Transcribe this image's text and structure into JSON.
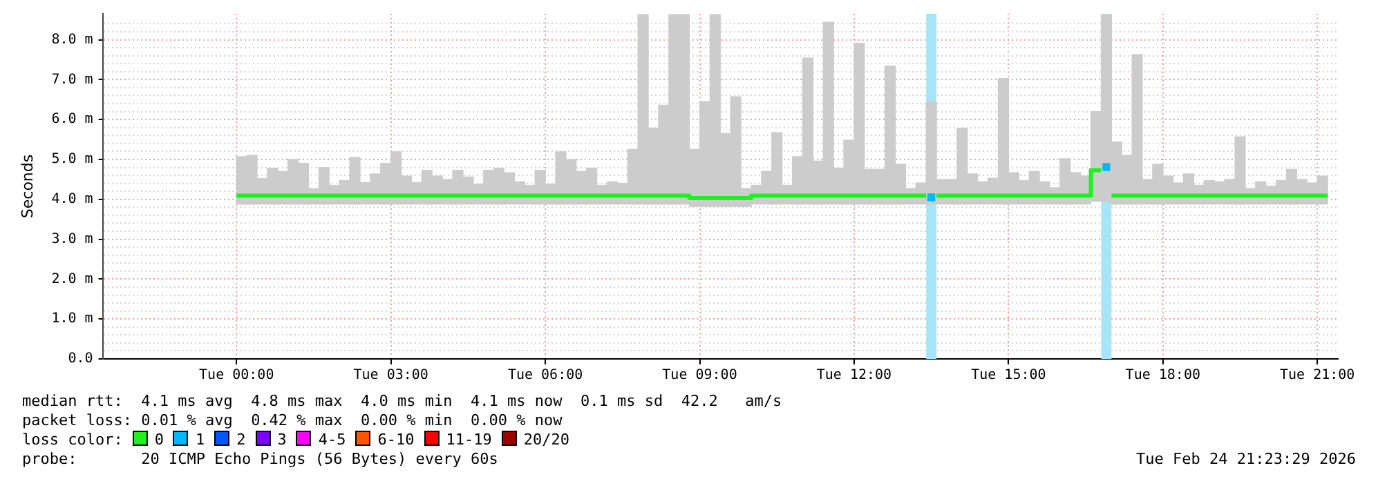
{
  "chart_data": {
    "type": "step",
    "ylabel": "Seconds",
    "legend_title": "loss color:",
    "legend": "bottom",
    "grid": true,
    "xlim": [
      "2026-02-23T21:24",
      "2026-02-24T21:24"
    ],
    "ylim": [
      0,
      8.65
    ],
    "xticks": [
      {
        "value": "2026-02-24T00:00",
        "label": "Tue 00:00"
      },
      {
        "value": "2026-02-24T03:00",
        "label": "Tue 03:00"
      },
      {
        "value": "2026-02-24T06:00",
        "label": "Tue 06:00"
      },
      {
        "value": "2026-02-24T09:00",
        "label": "Tue 09:00"
      },
      {
        "value": "2026-02-24T12:00",
        "label": "Tue 12:00"
      },
      {
        "value": "2026-02-24T15:00",
        "label": "Tue 15:00"
      },
      {
        "value": "2026-02-24T18:00",
        "label": "Tue 18:00"
      },
      {
        "value": "2026-02-24T21:00",
        "label": "Tue 21:00"
      }
    ],
    "yticks": [
      {
        "value": 0,
        "label": "0.0"
      },
      {
        "value": 0.2,
        "label": null
      },
      {
        "value": 0.4,
        "label": null
      },
      {
        "value": 0.6,
        "label": null
      },
      {
        "value": 0.8,
        "label": null
      },
      {
        "value": 1,
        "label": "1.0 m"
      },
      {
        "value": 1.2,
        "label": null
      },
      {
        "value": 1.4,
        "label": null
      },
      {
        "value": 1.6,
        "label": null
      },
      {
        "value": 1.8,
        "label": null
      },
      {
        "value": 2,
        "label": "2.0 m"
      },
      {
        "value": 2.2,
        "label": null
      },
      {
        "value": 2.4,
        "label": null
      },
      {
        "value": 2.6,
        "label": null
      },
      {
        "value": 2.8,
        "label": null
      },
      {
        "value": 3,
        "label": "3.0 m"
      },
      {
        "value": 3.2,
        "label": null
      },
      {
        "value": 3.4,
        "label": null
      },
      {
        "value": 3.6,
        "label": null
      },
      {
        "value": 3.8,
        "label": null
      },
      {
        "value": 4,
        "label": "4.0 m"
      },
      {
        "value": 4.2,
        "label": null
      },
      {
        "value": 4.4,
        "label": null
      },
      {
        "value": 4.6,
        "label": null
      },
      {
        "value": 4.8,
        "label": null
      },
      {
        "value": 5,
        "label": "5.0 m"
      },
      {
        "value": 5.2,
        "label": null
      },
      {
        "value": 5.4,
        "label": null
      },
      {
        "value": 5.6,
        "label": null
      },
      {
        "value": 5.8,
        "label": null
      },
      {
        "value": 6,
        "label": "6.0 m"
      },
      {
        "value": 6.2,
        "label": null
      },
      {
        "value": 6.4,
        "label": null
      },
      {
        "value": 6.6,
        "label": null
      },
      {
        "value": 6.8,
        "label": null
      },
      {
        "value": 7,
        "label": "7.0 m"
      },
      {
        "value": 7.2,
        "label": null
      },
      {
        "value": 7.4,
        "label": null
      },
      {
        "value": 7.6,
        "label": null
      },
      {
        "value": 7.8,
        "label": null
      },
      {
        "value": 8,
        "label": "8.0 m"
      },
      {
        "value": 8.2,
        "label": null
      },
      {
        "value": 8.4,
        "label": null
      }
    ],
    "x": [
      "2026-02-24T00:06",
      "2026-02-24T00:18",
      "2026-02-24T00:30",
      "2026-02-24T00:42",
      "2026-02-24T00:54",
      "2026-02-24T01:06",
      "2026-02-24T01:18",
      "2026-02-24T01:30",
      "2026-02-24T01:42",
      "2026-02-24T01:54",
      "2026-02-24T02:06",
      "2026-02-24T02:18",
      "2026-02-24T02:30",
      "2026-02-24T02:42",
      "2026-02-24T02:54",
      "2026-02-24T03:06",
      "2026-02-24T03:18",
      "2026-02-24T03:30",
      "2026-02-24T03:42",
      "2026-02-24T03:54",
      "2026-02-24T04:06",
      "2026-02-24T04:18",
      "2026-02-24T04:30",
      "2026-02-24T04:42",
      "2026-02-24T04:54",
      "2026-02-24T05:06",
      "2026-02-24T05:18",
      "2026-02-24T05:30",
      "2026-02-24T05:42",
      "2026-02-24T05:54",
      "2026-02-24T06:06",
      "2026-02-24T06:18",
      "2026-02-24T06:30",
      "2026-02-24T06:42",
      "2026-02-24T06:54",
      "2026-02-24T07:06",
      "2026-02-24T07:18",
      "2026-02-24T07:30",
      "2026-02-24T07:42",
      "2026-02-24T07:54",
      "2026-02-24T08:06",
      "2026-02-24T08:18",
      "2026-02-24T08:30",
      "2026-02-24T08:42",
      "2026-02-24T08:54",
      "2026-02-24T09:06",
      "2026-02-24T09:18",
      "2026-02-24T09:30",
      "2026-02-24T09:42",
      "2026-02-24T09:54",
      "2026-02-24T10:06",
      "2026-02-24T10:18",
      "2026-02-24T10:30",
      "2026-02-24T10:42",
      "2026-02-24T10:54",
      "2026-02-24T11:06",
      "2026-02-24T11:18",
      "2026-02-24T11:30",
      "2026-02-24T11:42",
      "2026-02-24T11:54",
      "2026-02-24T12:06",
      "2026-02-24T12:18",
      "2026-02-24T12:30",
      "2026-02-24T12:42",
      "2026-02-24T12:54",
      "2026-02-24T13:06",
      "2026-02-24T13:18",
      "2026-02-24T13:30",
      "2026-02-24T13:42",
      "2026-02-24T13:54",
      "2026-02-24T14:06",
      "2026-02-24T14:18",
      "2026-02-24T14:30",
      "2026-02-24T14:42",
      "2026-02-24T14:54",
      "2026-02-24T15:06",
      "2026-02-24T15:18",
      "2026-02-24T15:30",
      "2026-02-24T15:42",
      "2026-02-24T15:54",
      "2026-02-24T16:06",
      "2026-02-24T16:18",
      "2026-02-24T16:30",
      "2026-02-24T16:42",
      "2026-02-24T16:54",
      "2026-02-24T17:06",
      "2026-02-24T17:18",
      "2026-02-24T17:30",
      "2026-02-24T17:42",
      "2026-02-24T17:54",
      "2026-02-24T18:06",
      "2026-02-24T18:18",
      "2026-02-24T18:30",
      "2026-02-24T18:42",
      "2026-02-24T18:54",
      "2026-02-24T19:06",
      "2026-02-24T19:18",
      "2026-02-24T19:30",
      "2026-02-24T19:42",
      "2026-02-24T19:54",
      "2026-02-24T20:06",
      "2026-02-24T20:18",
      "2026-02-24T20:30",
      "2026-02-24T20:42",
      "2026-02-24T20:54",
      "2026-02-24T21:06"
    ],
    "bands": [
      {
        "axis": "x",
        "from": "2026-02-24T13:24",
        "to": "2026-02-24T13:36",
        "color": "#a8e4f8"
      },
      {
        "axis": "x",
        "from": "2026-02-24T16:48",
        "to": "2026-02-24T17:00",
        "color": "#a8e4f8"
      }
    ],
    "series": [
      {
        "type": "bar",
        "color": "#cccccc",
        "base": [
          3.88,
          3.88,
          3.88,
          3.88,
          3.88,
          3.88,
          3.88,
          3.88,
          3.88,
          3.88,
          3.88,
          3.88,
          3.88,
          3.88,
          3.88,
          3.88,
          3.88,
          3.88,
          3.88,
          3.88,
          3.88,
          3.88,
          3.88,
          3.88,
          3.88,
          3.88,
          3.88,
          3.88,
          3.88,
          3.88,
          3.88,
          3.88,
          3.88,
          3.88,
          3.88,
          3.88,
          3.88,
          3.88,
          3.88,
          3.88,
          3.88,
          3.88,
          3.88,
          3.88,
          3.82,
          3.82,
          3.82,
          3.82,
          3.82,
          3.82,
          3.88,
          3.88,
          3.88,
          3.88,
          3.88,
          3.88,
          3.88,
          3.88,
          3.88,
          3.88,
          3.88,
          3.88,
          3.88,
          3.88,
          3.88,
          3.88,
          3.88,
          3.88,
          3.88,
          3.88,
          3.88,
          3.88,
          3.88,
          3.88,
          3.88,
          3.88,
          3.88,
          3.88,
          3.88,
          3.88,
          3.88,
          3.88,
          3.88,
          3.95,
          3.95,
          3.88,
          3.88,
          3.88,
          3.88,
          3.88,
          3.88,
          3.88,
          3.88,
          3.88,
          3.88,
          3.88,
          3.88,
          3.88,
          3.88,
          3.88,
          3.88,
          3.88,
          3.88,
          3.88,
          3.88,
          3.88
        ],
        "values": [
          1.19,
          1.22,
          0.64,
          0.9,
          0.82,
          1.12,
          1.02,
          0.39,
          0.92,
          0.47,
          0.59,
          1.17,
          0.54,
          0.76,
          1.02,
          1.31,
          0.7,
          0.54,
          0.85,
          0.7,
          0.62,
          0.85,
          0.68,
          0.5,
          0.85,
          0.9,
          0.79,
          0.56,
          0.47,
          0.85,
          0.5,
          1.31,
          1.12,
          0.82,
          0.9,
          0.47,
          0.56,
          0.52,
          1.37,
          4.75,
          1.9,
          2.48,
          4.75,
          4.75,
          1.43,
          2.63,
          4.81,
          1.83,
          2.75,
          0.45,
          0.47,
          0.82,
          1.79,
          0.47,
          1.19,
          3.66,
          1.08,
          4.56,
          0.9,
          1.6,
          4.03,
          0.87,
          0.87,
          3.46,
          1.0,
          0.39,
          0.53,
          2.55,
          0.62,
          0.62,
          1.9,
          0.76,
          0.56,
          0.65,
          3.15,
          0.79,
          0.59,
          0.82,
          0.56,
          0.41,
          1.14,
          0.79,
          0.7,
          2.25,
          4.68,
          1.56,
          1.22,
          3.75,
          0.62,
          1.0,
          0.7,
          0.53,
          0.76,
          0.47,
          0.59,
          0.56,
          0.62,
          1.69,
          0.39,
          0.56,
          0.45,
          0.59,
          0.87,
          0.62,
          0.53,
          0.7
        ]
      },
      {
        "name": "0",
        "color": "#20f020",
        "values": [
          4.09,
          4.09,
          4.09,
          4.09,
          4.09,
          4.09,
          4.09,
          4.09,
          4.09,
          4.09,
          4.09,
          4.09,
          4.09,
          4.09,
          4.09,
          4.09,
          4.09,
          4.09,
          4.09,
          4.09,
          4.09,
          4.09,
          4.09,
          4.09,
          4.09,
          4.09,
          4.09,
          4.09,
          4.09,
          4.09,
          4.09,
          4.09,
          4.09,
          4.09,
          4.09,
          4.09,
          4.09,
          4.09,
          4.09,
          4.09,
          4.09,
          4.09,
          4.09,
          4.09,
          4.03,
          4.03,
          4.03,
          4.03,
          4.03,
          4.03,
          4.09,
          4.09,
          4.09,
          4.09,
          4.09,
          4.09,
          4.09,
          4.09,
          4.09,
          4.09,
          4.09,
          4.09,
          4.09,
          4.09,
          4.09,
          4.09,
          4.09,
          null,
          4.09,
          4.09,
          4.09,
          4.09,
          4.09,
          4.09,
          4.09,
          4.09,
          4.09,
          4.09,
          4.09,
          4.09,
          4.09,
          4.09,
          4.09,
          4.73,
          null,
          4.09,
          4.09,
          4.09,
          4.09,
          4.09,
          4.09,
          4.09,
          4.09,
          4.09,
          4.09,
          4.09,
          4.09,
          4.09,
          4.09,
          4.09,
          4.09,
          4.09,
          4.09,
          4.09,
          4.09,
          4.09
        ]
      },
      {
        "name": "1",
        "type": "scatter",
        "marker": "square",
        "color": "#00b8ff",
        "x": [
          "2026-02-24T13:30",
          "2026-02-24T16:54"
        ],
        "values": [
          4.05,
          4.81
        ]
      },
      {
        "name": "2",
        "color": "#0059ff",
        "values": [
          null,
          null,
          null,
          null,
          null,
          null,
          null,
          null,
          null,
          null,
          null,
          null,
          null,
          null,
          null,
          null,
          null,
          null,
          null,
          null,
          null,
          null,
          null,
          null,
          null,
          null,
          null,
          null,
          null,
          null,
          null,
          null,
          null,
          null,
          null,
          null,
          null,
          null,
          null,
          null,
          null,
          null,
          null,
          null,
          null,
          null,
          null,
          null,
          null,
          null,
          null,
          null,
          null,
          null,
          null,
          null,
          null,
          null,
          null,
          null,
          null,
          null,
          null,
          null,
          null,
          null,
          null,
          null,
          null,
          null,
          null,
          null,
          null,
          null,
          null,
          null,
          null,
          null,
          null,
          null,
          null,
          null,
          null,
          null,
          null,
          null,
          null,
          null,
          null,
          null,
          null,
          null,
          null,
          null,
          null,
          null,
          null,
          null,
          null,
          null,
          null,
          null,
          null,
          null,
          null,
          null
        ]
      },
      {
        "name": "3",
        "color": "#7e00ff",
        "values": [
          null,
          null,
          null,
          null,
          null,
          null,
          null,
          null,
          null,
          null,
          null,
          null,
          null,
          null,
          null,
          null,
          null,
          null,
          null,
          null,
          null,
          null,
          null,
          null,
          null,
          null,
          null,
          null,
          null,
          null,
          null,
          null,
          null,
          null,
          null,
          null,
          null,
          null,
          null,
          null,
          null,
          null,
          null,
          null,
          null,
          null,
          null,
          null,
          null,
          null,
          null,
          null,
          null,
          null,
          null,
          null,
          null,
          null,
          null,
          null,
          null,
          null,
          null,
          null,
          null,
          null,
          null,
          null,
          null,
          null,
          null,
          null,
          null,
          null,
          null,
          null,
          null,
          null,
          null,
          null,
          null,
          null,
          null,
          null,
          null,
          null,
          null,
          null,
          null,
          null,
          null,
          null,
          null,
          null,
          null,
          null,
          null,
          null,
          null,
          null,
          null,
          null,
          null,
          null,
          null,
          null
        ]
      },
      {
        "name": "4-5",
        "color": "#ff00ff",
        "values": [
          null,
          null,
          null,
          null,
          null,
          null,
          null,
          null,
          null,
          null,
          null,
          null,
          null,
          null,
          null,
          null,
          null,
          null,
          null,
          null,
          null,
          null,
          null,
          null,
          null,
          null,
          null,
          null,
          null,
          null,
          null,
          null,
          null,
          null,
          null,
          null,
          null,
          null,
          null,
          null,
          null,
          null,
          null,
          null,
          null,
          null,
          null,
          null,
          null,
          null,
          null,
          null,
          null,
          null,
          null,
          null,
          null,
          null,
          null,
          null,
          null,
          null,
          null,
          null,
          null,
          null,
          null,
          null,
          null,
          null,
          null,
          null,
          null,
          null,
          null,
          null,
          null,
          null,
          null,
          null,
          null,
          null,
          null,
          null,
          null,
          null,
          null,
          null,
          null,
          null,
          null,
          null,
          null,
          null,
          null,
          null,
          null,
          null,
          null,
          null,
          null,
          null,
          null,
          null,
          null,
          null
        ]
      },
      {
        "name": "6-10",
        "color": "#ff5500",
        "values": [
          null,
          null,
          null,
          null,
          null,
          null,
          null,
          null,
          null,
          null,
          null,
          null,
          null,
          null,
          null,
          null,
          null,
          null,
          null,
          null,
          null,
          null,
          null,
          null,
          null,
          null,
          null,
          null,
          null,
          null,
          null,
          null,
          null,
          null,
          null,
          null,
          null,
          null,
          null,
          null,
          null,
          null,
          null,
          null,
          null,
          null,
          null,
          null,
          null,
          null,
          null,
          null,
          null,
          null,
          null,
          null,
          null,
          null,
          null,
          null,
          null,
          null,
          null,
          null,
          null,
          null,
          null,
          null,
          null,
          null,
          null,
          null,
          null,
          null,
          null,
          null,
          null,
          null,
          null,
          null,
          null,
          null,
          null,
          null,
          null,
          null,
          null,
          null,
          null,
          null,
          null,
          null,
          null,
          null,
          null,
          null,
          null,
          null,
          null,
          null,
          null,
          null,
          null,
          null,
          null,
          null
        ]
      },
      {
        "name": "11-19",
        "color": "#ff0000",
        "values": [
          null,
          null,
          null,
          null,
          null,
          null,
          null,
          null,
          null,
          null,
          null,
          null,
          null,
          null,
          null,
          null,
          null,
          null,
          null,
          null,
          null,
          null,
          null,
          null,
          null,
          null,
          null,
          null,
          null,
          null,
          null,
          null,
          null,
          null,
          null,
          null,
          null,
          null,
          null,
          null,
          null,
          null,
          null,
          null,
          null,
          null,
          null,
          null,
          null,
          null,
          null,
          null,
          null,
          null,
          null,
          null,
          null,
          null,
          null,
          null,
          null,
          null,
          null,
          null,
          null,
          null,
          null,
          null,
          null,
          null,
          null,
          null,
          null,
          null,
          null,
          null,
          null,
          null,
          null,
          null,
          null,
          null,
          null,
          null,
          null,
          null,
          null,
          null,
          null,
          null,
          null,
          null,
          null,
          null,
          null,
          null,
          null,
          null,
          null,
          null,
          null,
          null,
          null,
          null,
          null,
          null
        ]
      },
      {
        "name": "20/20",
        "color": "#a10000",
        "values": [
          null,
          null,
          null,
          null,
          null,
          null,
          null,
          null,
          null,
          null,
          null,
          null,
          null,
          null,
          null,
          null,
          null,
          null,
          null,
          null,
          null,
          null,
          null,
          null,
          null,
          null,
          null,
          null,
          null,
          null,
          null,
          null,
          null,
          null,
          null,
          null,
          null,
          null,
          null,
          null,
          null,
          null,
          null,
          null,
          null,
          null,
          null,
          null,
          null,
          null,
          null,
          null,
          null,
          null,
          null,
          null,
          null,
          null,
          null,
          null,
          null,
          null,
          null,
          null,
          null,
          null,
          null,
          null,
          null,
          null,
          null,
          null,
          null,
          null,
          null,
          null,
          null,
          null,
          null,
          null,
          null,
          null,
          null,
          null,
          null,
          null,
          null,
          null,
          null,
          null,
          null,
          null,
          null,
          null,
          null,
          null,
          null,
          null,
          null,
          null,
          null,
          null,
          null,
          null,
          null,
          null
        ]
      }
    ],
    "annotations": [
      "median rtt:  4.1 ms avg  4.8 ms max  4.0 ms min  4.1 ms now  0.1 ms sd  42.2   am/s",
      "packet loss: 0.01 % avg  0.42 % max  0.00 % min  0.00 % now",
      "probe:       20 ICMP Echo Pings (56 Bytes) every 60s",
      "Tue Feb 24 21:23:29 2026"
    ]
  }
}
